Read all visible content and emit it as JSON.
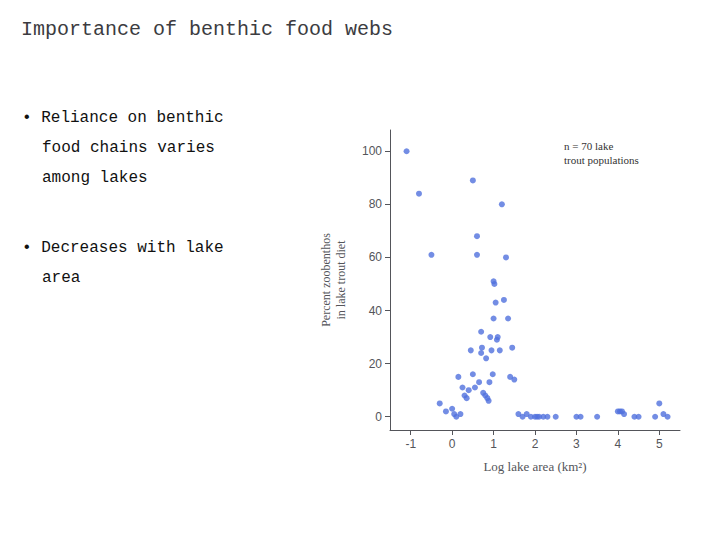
{
  "chart_data": {
    "type": "scatter",
    "title": "Importance of benthic food webs",
    "annotations": [
      "• Reliance on benthic\nfood chains varies\namong lakes",
      "• Decreases with lake\narea",
      "n = 70 lake\ntrout populations"
    ],
    "xlabel": "Log lake area (km²)",
    "ylabel": "Percent zoobenthos\nin lake trout diet",
    "xlim": [
      -1.5,
      5.5
    ],
    "ylim": [
      -5,
      108
    ],
    "xticks": [
      -1,
      0,
      1,
      2,
      3,
      4,
      5
    ],
    "yticks": [
      0,
      20,
      40,
      60,
      80,
      100
    ],
    "grid": false,
    "x": [
      -1.1,
      -0.8,
      -0.5,
      -0.3,
      -0.15,
      0.0,
      0.05,
      0.1,
      0.15,
      0.2,
      0.25,
      0.3,
      0.35,
      0.4,
      0.45,
      0.5,
      0.55,
      0.6,
      0.65,
      0.7,
      0.72,
      0.75,
      0.8,
      0.82,
      0.85,
      0.88,
      0.9,
      0.92,
      0.95,
      0.98,
      1.0,
      1.02,
      1.05,
      1.08,
      1.1,
      1.15,
      1.2,
      1.25,
      1.3,
      1.35,
      1.4,
      1.45,
      1.5,
      1.6,
      1.7,
      1.8,
      1.9,
      2.0,
      2.05,
      2.1,
      2.2,
      2.3,
      2.5,
      3.0,
      3.1,
      3.5,
      4.0,
      4.05,
      4.1,
      4.15,
      4.4,
      4.5,
      4.9,
      5.0,
      5.1,
      5.2,
      0.5,
      0.6,
      0.7,
      1.0
    ],
    "values": [
      100,
      84,
      61,
      5,
      2,
      3,
      1,
      0,
      15,
      1,
      11,
      8,
      7,
      10,
      25,
      16,
      11,
      68,
      13,
      24,
      26,
      9,
      8,
      22,
      7,
      6,
      13,
      30,
      25,
      16,
      51,
      50,
      43,
      29,
      30,
      25,
      80,
      44,
      60,
      37,
      15,
      26,
      14,
      1,
      0,
      1,
      0,
      0,
      0,
      0,
      0,
      0,
      0,
      0,
      0,
      0,
      2,
      2,
      2,
      1,
      0,
      0,
      0,
      5,
      1,
      0,
      89,
      61,
      32,
      37
    ]
  }
}
